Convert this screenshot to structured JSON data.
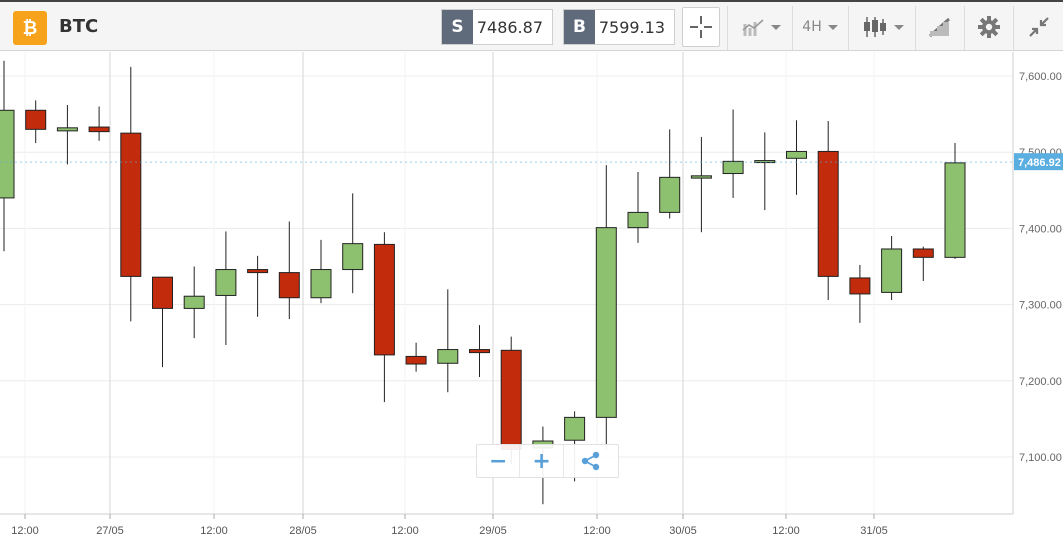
{
  "header": {
    "asset_symbol": "BTC",
    "asset_icon": "bitcoin-icon",
    "sell_tag": "S",
    "sell_price": "7486.87",
    "buy_tag": "B",
    "buy_price": "7599.13",
    "timeframe": "4H",
    "icons": [
      "crosshair-icon",
      "chart-type-icon",
      "candlestick-icon",
      "drawing-tools-icon",
      "gear-icon",
      "collapse-icon"
    ]
  },
  "zoom": {
    "minus_label": "−",
    "plus_label": "+",
    "share_icon": "share-icon"
  },
  "colors": {
    "up": "#8dc06f",
    "down": "#c22b0c",
    "price_marker": "#5aaee0",
    "grid": "#ececec",
    "vgrid": "#d6d6d6"
  },
  "chart_data": {
    "type": "candlestick",
    "ylim": [
      7040,
      7625
    ],
    "yticks": [
      7600,
      7500,
      7400,
      7300,
      7200,
      7100
    ],
    "ytick_labels": [
      "7,600.00",
      "7,500.00",
      "7,400.00",
      "7,300.00",
      "7,200.00",
      "7,100.00"
    ],
    "current_price": 7486.92,
    "current_price_label": "7,486.92",
    "xticks": [
      "12:00",
      "27/05",
      "12:00",
      "28/05",
      "12:00",
      "29/05",
      "12:00",
      "30/05",
      "12:00",
      "31/05"
    ],
    "grid": true,
    "candles": [
      {
        "o": 7440,
        "h": 7620,
        "l": 7370,
        "c": 7555
      },
      {
        "o": 7555,
        "h": 7568,
        "l": 7512,
        "c": 7530
      },
      {
        "o": 7528,
        "h": 7562,
        "l": 7484,
        "c": 7532
      },
      {
        "o": 7533,
        "h": 7560,
        "l": 7515,
        "c": 7527
      },
      {
        "o": 7525,
        "h": 7612,
        "l": 7278,
        "c": 7337
      },
      {
        "o": 7336,
        "h": 7336,
        "l": 7218,
        "c": 7295
      },
      {
        "o": 7295,
        "h": 7350,
        "l": 7256,
        "c": 7311
      },
      {
        "o": 7312,
        "h": 7396,
        "l": 7247,
        "c": 7346
      },
      {
        "o": 7346,
        "h": 7364,
        "l": 7284,
        "c": 7342
      },
      {
        "o": 7342,
        "h": 7409,
        "l": 7281,
        "c": 7309
      },
      {
        "o": 7309,
        "h": 7385,
        "l": 7302,
        "c": 7346
      },
      {
        "o": 7346,
        "h": 7446,
        "l": 7315,
        "c": 7380
      },
      {
        "o": 7379,
        "h": 7395,
        "l": 7172,
        "c": 7234
      },
      {
        "o": 7232,
        "h": 7250,
        "l": 7212,
        "c": 7222
      },
      {
        "o": 7223,
        "h": 7320,
        "l": 7185,
        "c": 7241
      },
      {
        "o": 7241,
        "h": 7273,
        "l": 7205,
        "c": 7237
      },
      {
        "o": 7240,
        "h": 7258,
        "l": 7090,
        "c": 7110
      },
      {
        "o": 7112,
        "h": 7140,
        "l": 7038,
        "c": 7121
      },
      {
        "o": 7122,
        "h": 7160,
        "l": 7068,
        "c": 7152
      },
      {
        "o": 7152,
        "h": 7483,
        "l": 7110,
        "c": 7401
      },
      {
        "o": 7401,
        "h": 7474,
        "l": 7381,
        "c": 7421
      },
      {
        "o": 7421,
        "h": 7530,
        "l": 7413,
        "c": 7467
      },
      {
        "o": 7466,
        "h": 7520,
        "l": 7395,
        "c": 7469
      },
      {
        "o": 7472,
        "h": 7556,
        "l": 7440,
        "c": 7488
      },
      {
        "o": 7487,
        "h": 7526,
        "l": 7424,
        "c": 7489
      },
      {
        "o": 7492,
        "h": 7542,
        "l": 7444,
        "c": 7501
      },
      {
        "o": 7501,
        "h": 7541,
        "l": 7306,
        "c": 7337
      },
      {
        "o": 7335,
        "h": 7352,
        "l": 7276,
        "c": 7314
      },
      {
        "o": 7316,
        "h": 7390,
        "l": 7306,
        "c": 7373
      },
      {
        "o": 7373,
        "h": 7376,
        "l": 7331,
        "c": 7362
      },
      {
        "o": 7362,
        "h": 7512,
        "l": 7360,
        "c": 7486
      }
    ]
  }
}
